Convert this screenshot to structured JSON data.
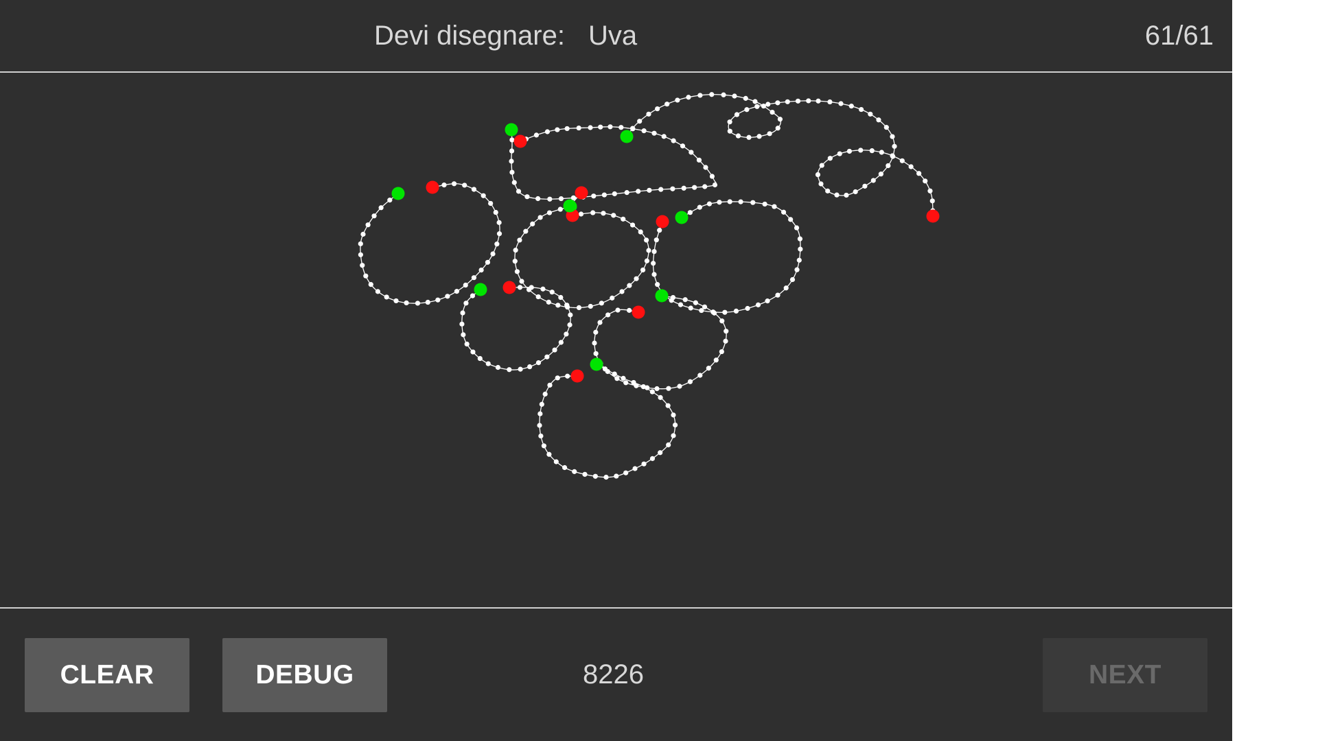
{
  "header": {
    "prompt_label": "Devi disegnare:",
    "prompt_word": "Uva",
    "counter": "61/61"
  },
  "footer": {
    "clear_label": "CLEAR",
    "debug_label": "DEBUG",
    "score": "8226",
    "next_label": "NEXT"
  },
  "colors": {
    "background": "#2f2f2f",
    "stroke": "#ffffff",
    "stroke_start": "#00e400",
    "stroke_end": "#ff1010",
    "button": "#5a5a5a",
    "button_disabled": "#3a3a3a"
  }
}
